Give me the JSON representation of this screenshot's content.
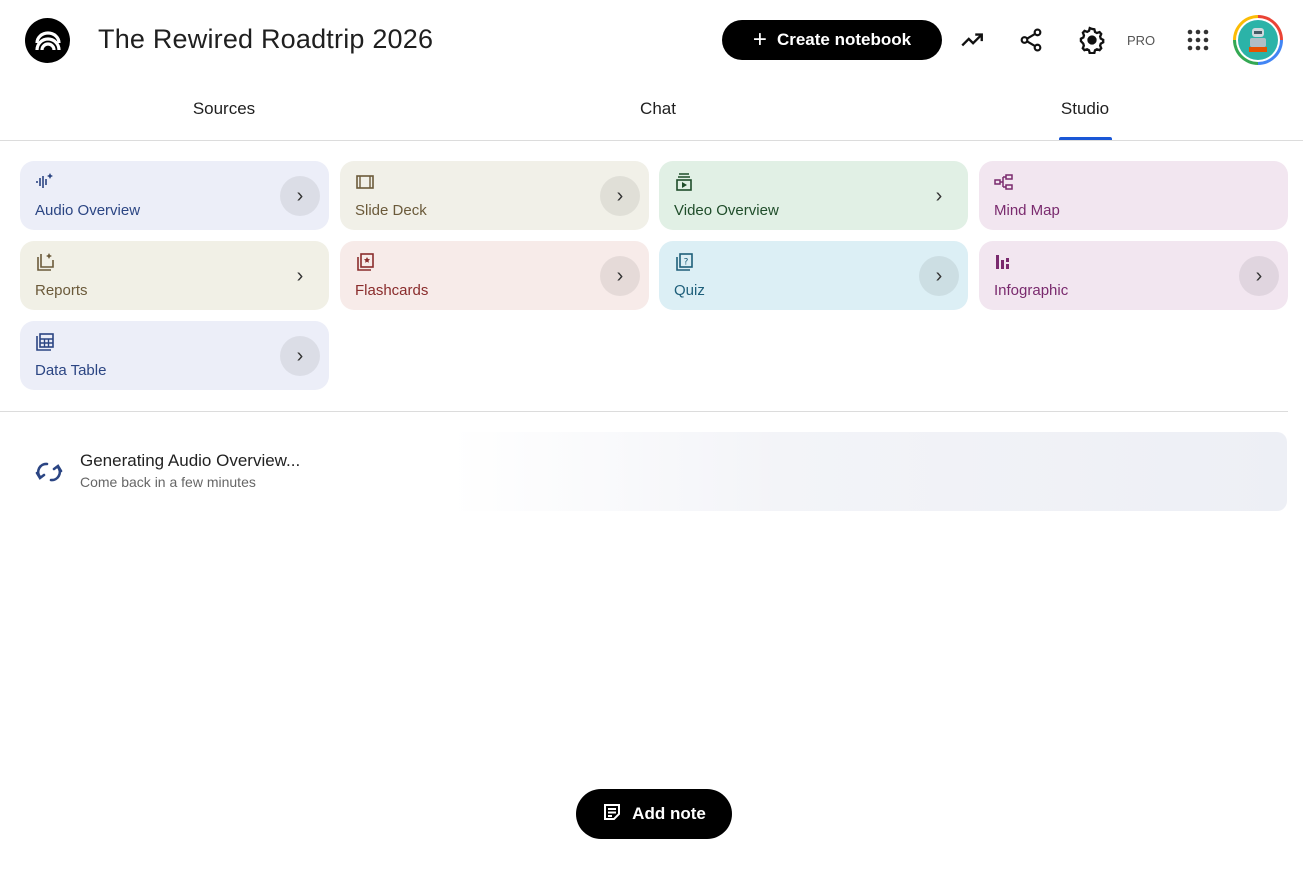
{
  "header": {
    "title": "The Rewired Roadtrip 2026",
    "create_label": "Create notebook",
    "pro_label": "PRO",
    "icons": [
      "analytics-icon",
      "share-icon",
      "settings-icon",
      "apps-grid-icon"
    ]
  },
  "tabs": [
    {
      "label": "Sources"
    },
    {
      "label": "Chat"
    },
    {
      "label": "Studio",
      "active": true
    }
  ],
  "accent_color": "#1a57d6",
  "studio": {
    "tools": [
      {
        "label": "Audio Overview",
        "icon": "audio-sparkle-icon",
        "bg": "#eceef8",
        "fg": "#2b4583",
        "arrow": "circle"
      },
      {
        "label": "Slide Deck",
        "icon": "slide-deck-icon",
        "bg": "#f1f0e8",
        "fg": "#6b5a3a",
        "arrow": "circle"
      },
      {
        "label": "Video Overview",
        "icon": "video-icon",
        "bg": "#e1f0e5",
        "fg": "#1f4d2a",
        "arrow": "plain"
      },
      {
        "label": "Mind Map",
        "icon": "mind-map-icon",
        "bg": "#f2e6f0",
        "fg": "#7a2a6e",
        "arrow": "none"
      },
      {
        "label": "Reports",
        "icon": "reports-icon",
        "bg": "#f1f0e6",
        "fg": "#6b5a3a",
        "arrow": "plain"
      },
      {
        "label": "Flashcards",
        "icon": "flashcards-icon",
        "bg": "#f7ebe9",
        "fg": "#8a2c2c",
        "arrow": "circle"
      },
      {
        "label": "Quiz",
        "icon": "quiz-icon",
        "bg": "#dceff5",
        "fg": "#1e5f7a",
        "arrow": "circle"
      },
      {
        "label": "Infographic",
        "icon": "infographic-icon",
        "bg": "#f2e6f0",
        "fg": "#7a2a6e",
        "arrow": "circle"
      },
      {
        "label": "Data Table",
        "icon": "data-table-icon",
        "bg": "#eceef8",
        "fg": "#2b4583",
        "arrow": "circle"
      }
    ],
    "generating": {
      "title": "Generating Audio Overview...",
      "subtitle": "Come back in a few minutes"
    }
  },
  "add_note_label": "Add note"
}
